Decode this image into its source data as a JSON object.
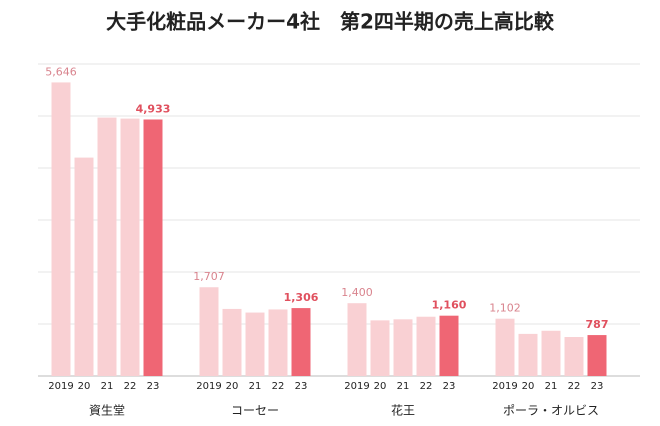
{
  "chart_data": {
    "type": "bar",
    "title": "大手化粧品メーカー4社　第2四半期の売上高比較",
    "categories": [
      "資生堂",
      "コーセー",
      "花王",
      "ポーラ・オルビス"
    ],
    "series": [
      {
        "name": "2019",
        "color": "#f9d0d3",
        "values": [
          5646,
          1707,
          1400,
          1102
        ],
        "value_labels": [
          "5,646",
          "1,707",
          "1,400",
          "1,102"
        ],
        "label_color": "#d9848e"
      },
      {
        "name": "20",
        "color": "#f9d0d3",
        "values": [
          4200,
          1290,
          1070,
          810
        ]
      },
      {
        "name": "21",
        "color": "#f9d0d3",
        "values": [
          4970,
          1220,
          1090,
          870
        ]
      },
      {
        "name": "22",
        "color": "#f9d0d3",
        "values": [
          4950,
          1280,
          1140,
          750
        ]
      },
      {
        "name": "23",
        "color": "#ef6674",
        "values": [
          4933,
          1306,
          1160,
          787
        ],
        "value_labels": [
          "4,933",
          "1,306",
          "1,160",
          "787"
        ],
        "label_color": "#e0505e"
      }
    ],
    "ylim": [
      0,
      6000
    ],
    "yticks": [
      0,
      1000,
      2000,
      3000,
      4000,
      5000,
      6000
    ],
    "grid": true
  }
}
